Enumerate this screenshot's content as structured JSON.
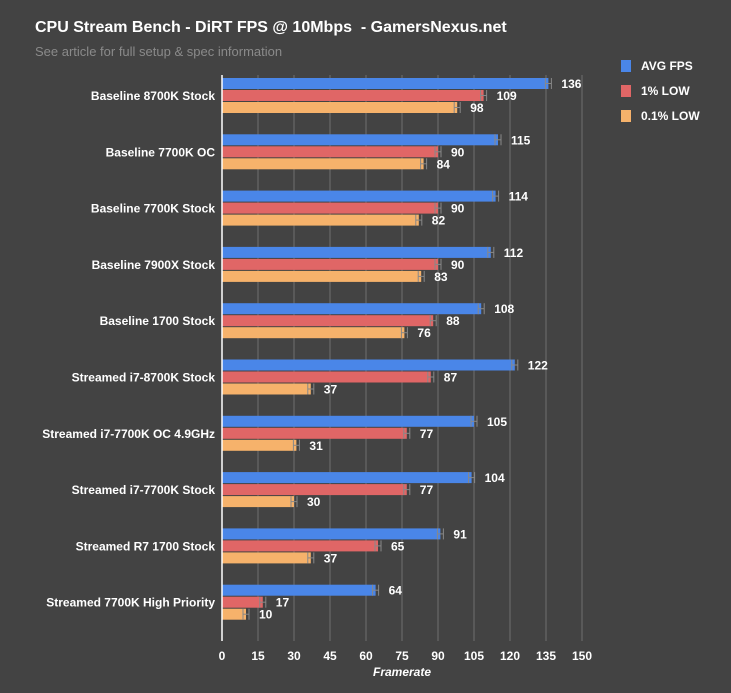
{
  "chart_data": {
    "type": "bar",
    "orientation": "horizontal",
    "title": "CPU Stream Bench - DiRT FPS @ 10Mbps  - GamersNexus.net",
    "subtitle": "See article for full setup & spec information",
    "xlabel": "Framerate",
    "ylabel": "",
    "xlim": [
      0,
      150
    ],
    "xticks": [
      0,
      15,
      30,
      45,
      60,
      75,
      90,
      105,
      120,
      135,
      150
    ],
    "grid": true,
    "legend_position": "right",
    "categories": [
      "Baseline 8700K Stock",
      "Baseline 7700K OC",
      "Baseline 7700K Stock",
      "Baseline 7900X Stock",
      "Baseline 1700 Stock",
      "Streamed i7-8700K Stock",
      "Streamed i7-7700K OC 4.9GHz",
      "Streamed i7-7700K Stock",
      "Streamed R7 1700 Stock",
      "Streamed 7700K High Priority"
    ],
    "series": [
      {
        "name": "AVG FPS",
        "color": "#4a86e8",
        "values": [
          136,
          115,
          114,
          112,
          108,
          122,
          105,
          104,
          91,
          64
        ]
      },
      {
        "name": "1% LOW",
        "color": "#e06666",
        "values": [
          109,
          90,
          90,
          90,
          88,
          87,
          77,
          77,
          65,
          17
        ]
      },
      {
        "name": "0.1% LOW",
        "color": "#f6b26b",
        "values": [
          98,
          84,
          82,
          83,
          76,
          37,
          31,
          30,
          37,
          10
        ]
      }
    ]
  }
}
